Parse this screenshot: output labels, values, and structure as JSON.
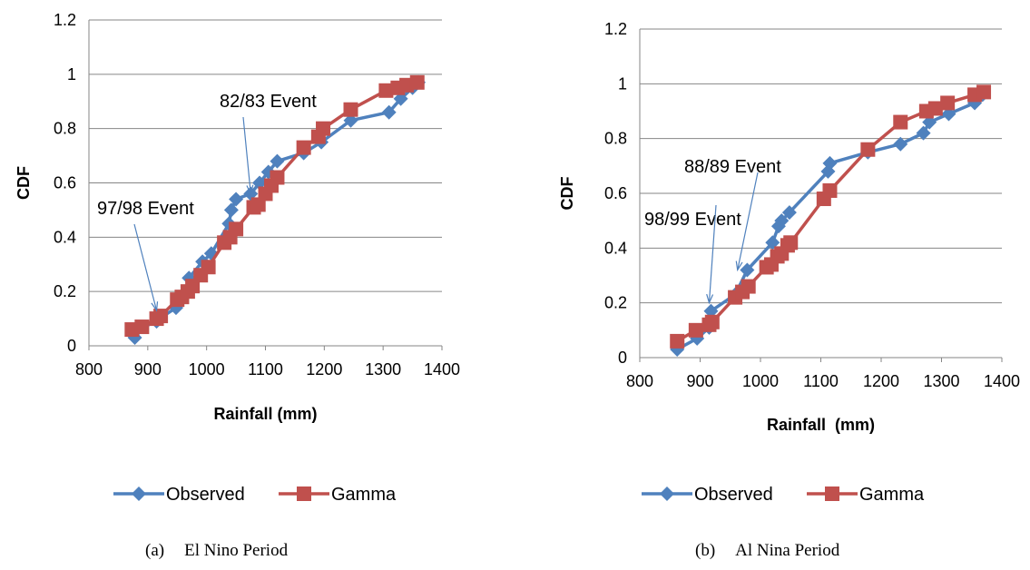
{
  "figure": {
    "panels": [
      {
        "caption_label": "(a)",
        "caption_text": "El Nino Period"
      },
      {
        "caption_label": "(b)",
        "caption_text": "Al Nina Period"
      }
    ]
  },
  "colors": {
    "observed": "#4F81BD",
    "gamma": "#C0504D",
    "grid": "#868686",
    "axis": "#868686"
  },
  "chart_data": [
    {
      "type": "line",
      "title": "",
      "xlabel": "Rainfall (mm)",
      "ylabel": "CDF",
      "xlim": [
        800,
        1400
      ],
      "ylim": [
        0,
        1.2
      ],
      "xticks": [
        "800",
        "900",
        "1000",
        "1100",
        "1200",
        "1300",
        "1400"
      ],
      "yticks": [
        "0",
        "0.2",
        "0.4",
        "0.6",
        "0.8",
        "1",
        "1.2"
      ],
      "grid": "horizontal",
      "legend": "bottom",
      "series": [
        {
          "name": "Observed",
          "marker": "diamond",
          "x": [
            878,
            882,
            915,
            920,
            948,
            963,
            970,
            993,
            1008,
            1038,
            1042,
            1050,
            1075,
            1090,
            1105,
            1120,
            1165,
            1195,
            1245,
            1310,
            1330,
            1350,
            1360
          ],
          "y": [
            0.03,
            0.06,
            0.09,
            0.1,
            0.14,
            0.19,
            0.25,
            0.31,
            0.34,
            0.45,
            0.5,
            0.54,
            0.56,
            0.6,
            0.64,
            0.68,
            0.71,
            0.75,
            0.83,
            0.86,
            0.91,
            0.95,
            0.97
          ]
        },
        {
          "name": "Gamma",
          "marker": "square",
          "x": [
            873,
            890,
            915,
            922,
            950,
            958,
            968,
            976,
            990,
            1003,
            1030,
            1040,
            1050,
            1080,
            1088,
            1100,
            1110,
            1120,
            1165,
            1190,
            1198,
            1245,
            1305,
            1325,
            1340,
            1358
          ],
          "y": [
            0.06,
            0.07,
            0.1,
            0.11,
            0.17,
            0.18,
            0.2,
            0.22,
            0.26,
            0.29,
            0.38,
            0.4,
            0.43,
            0.51,
            0.52,
            0.56,
            0.59,
            0.62,
            0.73,
            0.77,
            0.8,
            0.87,
            0.94,
            0.95,
            0.96,
            0.97
          ]
        }
      ],
      "annotations": [
        {
          "text": "97/98 Event",
          "x": 915,
          "y": 0.13
        },
        {
          "text": "82/83 Event",
          "x": 1075,
          "y": 0.56
        }
      ]
    },
    {
      "type": "line",
      "title": "",
      "xlabel": "Rainfall  (mm)",
      "ylabel": "CDF",
      "xlim": [
        800,
        1400
      ],
      "ylim": [
        0,
        1.2
      ],
      "xticks": [
        "800",
        "900",
        "1000",
        "1100",
        "1200",
        "1300",
        "1400"
      ],
      "yticks": [
        "0",
        "0.2",
        "0.4",
        "0.6",
        "0.8",
        "1",
        "1.2"
      ],
      "grid": "horizontal",
      "legend": "bottom",
      "series": [
        {
          "name": "Observed",
          "marker": "diamond",
          "x": [
            862,
            895,
            915,
            918,
            958,
            978,
            1020,
            1030,
            1035,
            1048,
            1112,
            1115,
            1178,
            1232,
            1270,
            1280,
            1312,
            1355,
            1368
          ],
          "y": [
            0.03,
            0.07,
            0.11,
            0.17,
            0.23,
            0.32,
            0.42,
            0.48,
            0.5,
            0.53,
            0.68,
            0.71,
            0.75,
            0.78,
            0.82,
            0.86,
            0.89,
            0.93,
            0.96
          ]
        },
        {
          "name": "Gamma",
          "marker": "square",
          "x": [
            862,
            893,
            915,
            920,
            958,
            970,
            980,
            1010,
            1018,
            1028,
            1035,
            1045,
            1050,
            1105,
            1115,
            1178,
            1232,
            1275,
            1290,
            1310,
            1355,
            1370
          ],
          "y": [
            0.06,
            0.1,
            0.12,
            0.13,
            0.22,
            0.24,
            0.26,
            0.33,
            0.34,
            0.37,
            0.38,
            0.41,
            0.42,
            0.58,
            0.61,
            0.76,
            0.86,
            0.9,
            0.91,
            0.93,
            0.96,
            0.97
          ]
        }
      ],
      "annotations": [
        {
          "text": "98/99 Event",
          "x": 915,
          "y": 0.2
        },
        {
          "text": "88/89 Event",
          "x": 962,
          "y": 0.32
        }
      ]
    }
  ]
}
